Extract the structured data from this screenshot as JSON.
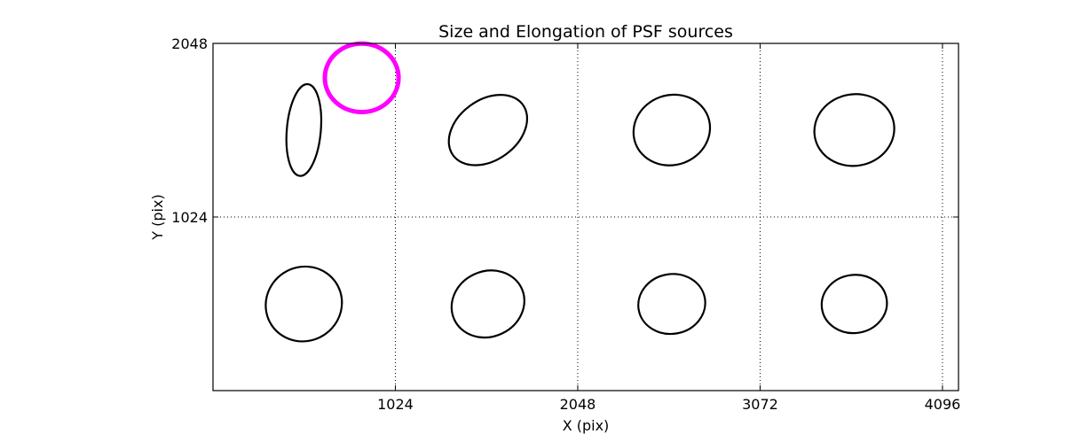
{
  "chart_data": {
    "type": "scatter",
    "title": "Size and Elongation of PSF sources",
    "xlabel": "X (pix)",
    "ylabel": "Y (pix)",
    "xlim": [
      0,
      4186
    ],
    "ylim": [
      0,
      2048
    ],
    "xticks": [
      1024,
      2048,
      3072,
      4096
    ],
    "yticks": [
      1024,
      2048
    ],
    "xtick_labels": [
      "1024",
      "2048",
      "3072",
      "4096"
    ],
    "ytick_labels": [
      "1024",
      "2048"
    ],
    "grid": true,
    "colors": {
      "default": "#000000",
      "highlight": "#ff00ff"
    },
    "ellipses": [
      {
        "x": 510,
        "y": 1537,
        "width": 191,
        "height": 543,
        "angle": -5,
        "color": "#000000"
      },
      {
        "x": 1544,
        "y": 1537,
        "width": 484,
        "height": 356,
        "angle": 36,
        "color": "#000000"
      },
      {
        "x": 2576,
        "y": 1537,
        "width": 434,
        "height": 412,
        "angle": 20,
        "color": "#000000"
      },
      {
        "x": 3601,
        "y": 1537,
        "width": 450,
        "height": 422,
        "angle": 10,
        "color": "#000000"
      },
      {
        "x": 510,
        "y": 511,
        "width": 433,
        "height": 436,
        "angle": 33,
        "color": "#000000"
      },
      {
        "x": 1544,
        "y": 511,
        "width": 417,
        "height": 386,
        "angle": 25,
        "color": "#000000"
      },
      {
        "x": 2576,
        "y": 511,
        "width": 377,
        "height": 352,
        "angle": 10,
        "color": "#000000"
      },
      {
        "x": 3601,
        "y": 511,
        "width": 367,
        "height": 343,
        "angle": 8,
        "color": "#000000"
      },
      {
        "x": 835,
        "y": 1845,
        "width": 414,
        "height": 404,
        "angle": 0,
        "color": "#ff00ff"
      }
    ]
  }
}
